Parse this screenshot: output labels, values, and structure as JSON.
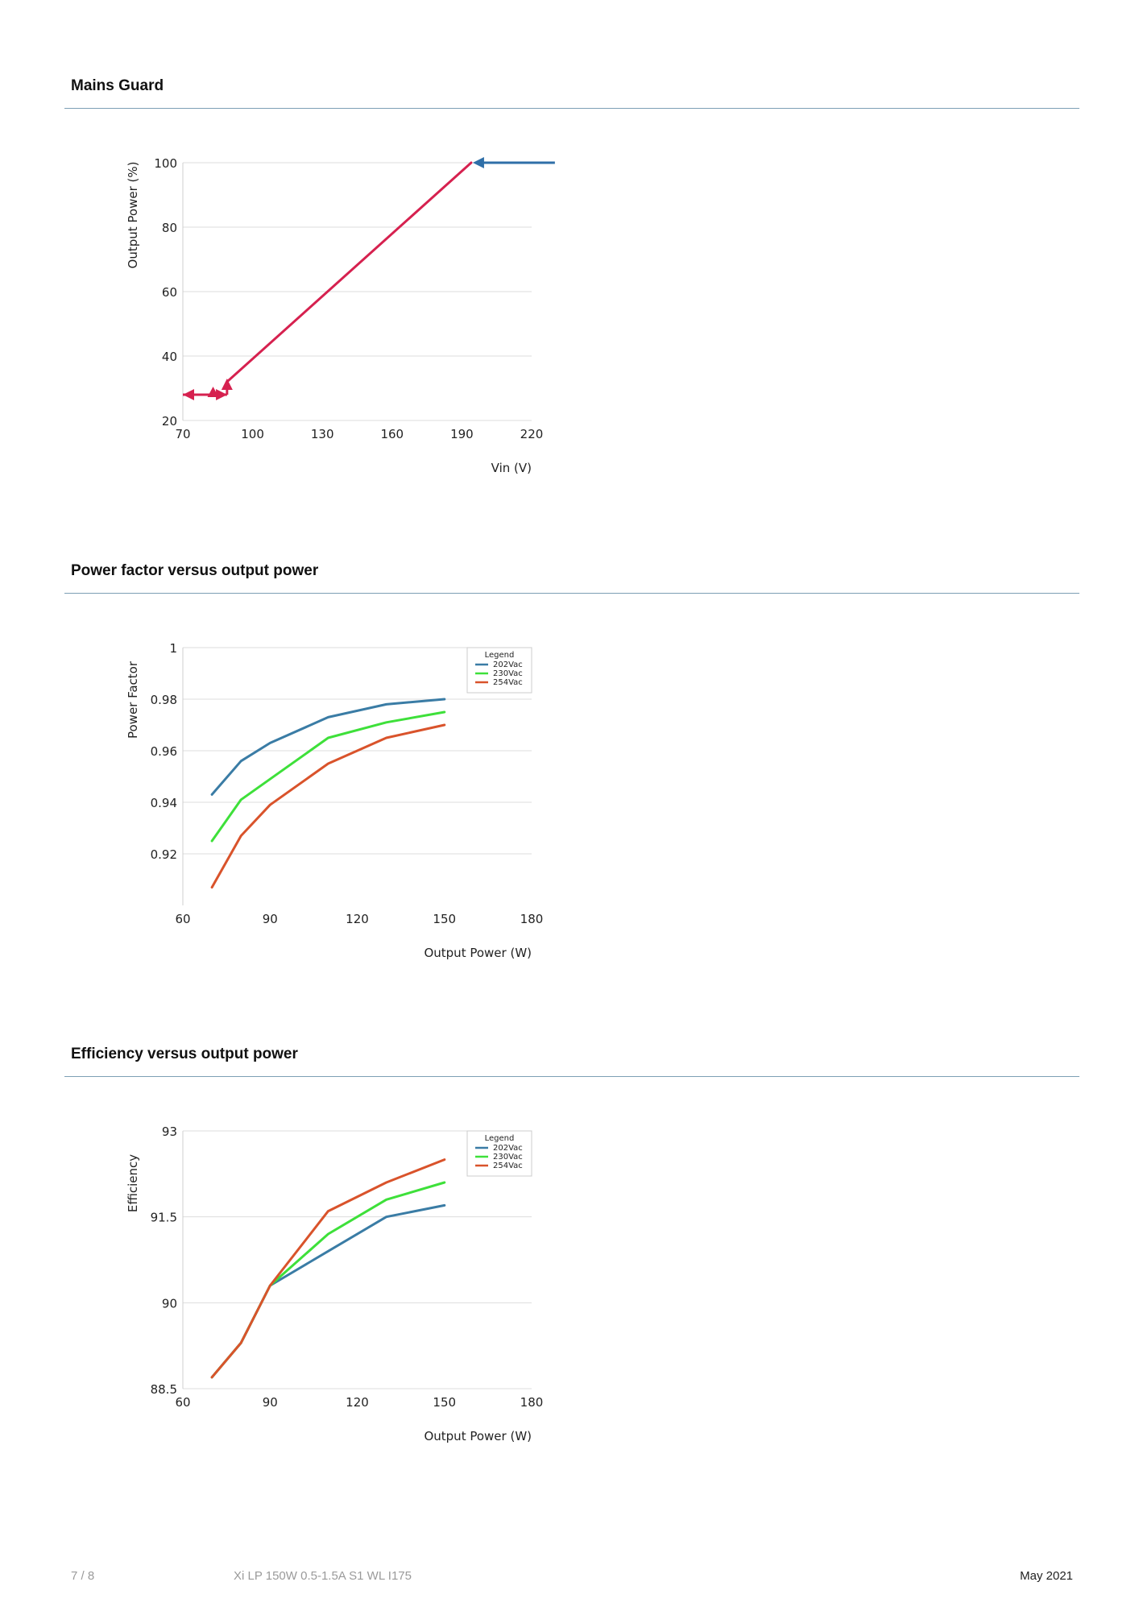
{
  "sections": [
    {
      "title": "Mains Guard"
    },
    {
      "title": "Power factor versus output power"
    },
    {
      "title": "Efficiency versus output power"
    }
  ],
  "footer": {
    "page": "7 / 8",
    "product": "Xi LP 150W 0.5-1.5A S1 WL I175",
    "date": "May 2021"
  },
  "colors": {
    "rule": "#7d9fb5",
    "grid": "#dddddd",
    "s202": "#3a7ca5",
    "s230": "#3ee03a",
    "s254": "#d9532b",
    "mains_line": "#d6214f",
    "mains_arrow_blue": "#2f6fa8"
  },
  "chart_data": [
    {
      "type": "line",
      "xlabel": "Vin (V)",
      "ylabel": "Output Power (%)",
      "xlim": [
        70,
        220
      ],
      "ylim": [
        20,
        100
      ],
      "xticks": [
        70,
        100,
        130,
        160,
        190,
        220
      ],
      "yticks": [
        20,
        40,
        60,
        80,
        100
      ],
      "grid": true,
      "series": [
        {
          "x": [
            89,
            194,
            230
          ],
          "y": [
            32,
            100,
            100
          ]
        },
        {
          "x": [
            70,
            89
          ],
          "y": [
            28,
            28
          ]
        }
      ]
    },
    {
      "type": "line",
      "xlabel": "Output Power (W)",
      "ylabel": "Power Factor",
      "xlim": [
        60,
        180
      ],
      "ylim": [
        0.9,
        1.0
      ],
      "xticks": [
        60,
        90,
        120,
        150,
        180
      ],
      "yticks": [
        0.92,
        0.94,
        0.96,
        0.98,
        1
      ],
      "ytick_labels": [
        "0.92",
        "0.94",
        "0.96",
        "0.98",
        "1"
      ],
      "grid": true,
      "legend": {
        "title": "Legend",
        "position": "top-right"
      },
      "series": [
        {
          "name": "202Vac",
          "x": [
            70,
            80,
            90,
            110,
            130,
            150
          ],
          "y": [
            0.943,
            0.956,
            0.963,
            0.973,
            0.978,
            0.98
          ]
        },
        {
          "name": "230Vac",
          "x": [
            70,
            80,
            90,
            110,
            130,
            150
          ],
          "y": [
            0.925,
            0.941,
            0.949,
            0.965,
            0.971,
            0.975
          ]
        },
        {
          "name": "254Vac",
          "x": [
            70,
            80,
            90,
            110,
            130,
            150
          ],
          "y": [
            0.907,
            0.927,
            0.939,
            0.955,
            0.965,
            0.97
          ]
        }
      ]
    },
    {
      "type": "line",
      "xlabel": "Output Power (W)",
      "ylabel": "Efficiency",
      "xlim": [
        60,
        180
      ],
      "ylim": [
        88.5,
        93
      ],
      "xticks": [
        60,
        90,
        120,
        150,
        180
      ],
      "yticks": [
        88.5,
        90,
        91.5,
        93
      ],
      "ytick_labels": [
        "88.5",
        "90",
        "91.5",
        "93"
      ],
      "grid": true,
      "legend": {
        "title": "Legend",
        "position": "top-right"
      },
      "series": [
        {
          "name": "202Vac",
          "x": [
            70,
            80,
            90,
            110,
            130,
            150
          ],
          "y": [
            88.7,
            89.3,
            90.3,
            90.9,
            91.5,
            91.7
          ]
        },
        {
          "name": "230Vac",
          "x": [
            70,
            80,
            90,
            110,
            130,
            150
          ],
          "y": [
            88.7,
            89.3,
            90.3,
            91.2,
            91.8,
            92.1
          ]
        },
        {
          "name": "254Vac",
          "x": [
            70,
            80,
            90,
            110,
            130,
            150
          ],
          "y": [
            88.7,
            89.3,
            90.3,
            91.6,
            92.1,
            92.5
          ]
        }
      ]
    }
  ]
}
